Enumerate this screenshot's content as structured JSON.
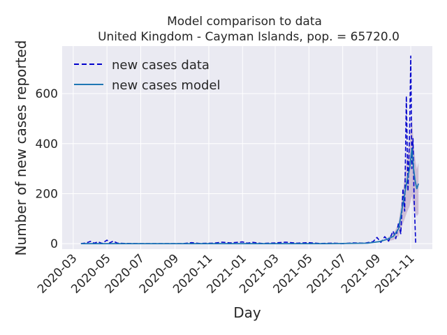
{
  "chart_data": {
    "type": "line",
    "title_line1": "Model comparison to data",
    "title_line2": "United Kingdom - Cayman Islands, pop. = 65720.0",
    "xlabel": "Day",
    "ylabel": "Number of new cases reported",
    "x_range": [
      "2020-02-10",
      "2021-12-10"
    ],
    "ylim": [
      -22,
      790
    ],
    "y_ticks": [
      0,
      200,
      400,
      600
    ],
    "y_tick_labels": [
      "0",
      "200",
      "400",
      "600"
    ],
    "x_ticks": [
      "2020-03-01",
      "2020-05-01",
      "2020-07-01",
      "2020-09-01",
      "2020-11-01",
      "2021-01-01",
      "2021-03-01",
      "2021-05-01",
      "2021-07-01",
      "2021-09-01",
      "2021-11-01"
    ],
    "x_tick_labels": [
      "2020-03",
      "2020-05",
      "2020-07",
      "2020-09",
      "2020-11",
      "2021-01",
      "2021-03",
      "2021-05",
      "2021-07",
      "2021-09",
      "2021-11"
    ],
    "grid": true,
    "legend_placement": "top-left",
    "colors": {
      "data": "#0000cc",
      "model": "#1f77b4",
      "band": "#b497bd",
      "background": "#eaeaf2",
      "grid": "#ffffff"
    },
    "series": [
      {
        "name": "new cases data",
        "style": "dashed",
        "points": [
          [
            "2020-03-15",
            0
          ],
          [
            "2020-03-25",
            3
          ],
          [
            "2020-04-01",
            9
          ],
          [
            "2020-04-08",
            2
          ],
          [
            "2020-04-15",
            7
          ],
          [
            "2020-04-22",
            1
          ],
          [
            "2020-05-01",
            14
          ],
          [
            "2020-05-06",
            3
          ],
          [
            "2020-05-12",
            10
          ],
          [
            "2020-05-20",
            2
          ],
          [
            "2020-06-01",
            1
          ],
          [
            "2020-07-01",
            0
          ],
          [
            "2020-08-01",
            0
          ],
          [
            "2020-09-15",
            0
          ],
          [
            "2020-10-01",
            4
          ],
          [
            "2020-10-15",
            1
          ],
          [
            "2020-11-10",
            2
          ],
          [
            "2020-11-25",
            6
          ],
          [
            "2020-12-10",
            3
          ],
          [
            "2021-01-01",
            7
          ],
          [
            "2021-01-10",
            2
          ],
          [
            "2021-01-20",
            5
          ],
          [
            "2021-02-05",
            1
          ],
          [
            "2021-03-01",
            3
          ],
          [
            "2021-03-20",
            6
          ],
          [
            "2021-04-10",
            2
          ],
          [
            "2021-05-01",
            4
          ],
          [
            "2021-05-20",
            1
          ],
          [
            "2021-06-15",
            2
          ],
          [
            "2021-07-01",
            0
          ],
          [
            "2021-07-20",
            3
          ],
          [
            "2021-08-10",
            2
          ],
          [
            "2021-08-25",
            8
          ],
          [
            "2021-09-01",
            25
          ],
          [
            "2021-09-08",
            5
          ],
          [
            "2021-09-15",
            28
          ],
          [
            "2021-09-22",
            10
          ],
          [
            "2021-09-30",
            50
          ],
          [
            "2021-10-05",
            20
          ],
          [
            "2021-10-10",
            85
          ],
          [
            "2021-10-14",
            40
          ],
          [
            "2021-10-18",
            220
          ],
          [
            "2021-10-21",
            130
          ],
          [
            "2021-10-24",
            590
          ],
          [
            "2021-10-27",
            210
          ],
          [
            "2021-10-30",
            450
          ],
          [
            "2021-11-01",
            750
          ],
          [
            "2021-11-03",
            300
          ],
          [
            "2021-11-05",
            420
          ],
          [
            "2021-11-07",
            180
          ],
          [
            "2021-11-10",
            0
          ]
        ]
      },
      {
        "name": "new cases model",
        "style": "solid",
        "points": [
          [
            "2020-03-15",
            0
          ],
          [
            "2020-06-01",
            0
          ],
          [
            "2020-09-01",
            0
          ],
          [
            "2020-12-01",
            0
          ],
          [
            "2021-03-01",
            0
          ],
          [
            "2021-06-01",
            0
          ],
          [
            "2021-08-15",
            2
          ],
          [
            "2021-09-05",
            8
          ],
          [
            "2021-09-20",
            18
          ],
          [
            "2021-10-01",
            30
          ],
          [
            "2021-10-10",
            60
          ],
          [
            "2021-10-18",
            160
          ],
          [
            "2021-10-25",
            250
          ],
          [
            "2021-10-30",
            300
          ],
          [
            "2021-11-03",
            380
          ],
          [
            "2021-11-06",
            300
          ],
          [
            "2021-11-09",
            250
          ],
          [
            "2021-11-12",
            220
          ],
          [
            "2021-11-15",
            240
          ]
        ]
      }
    ]
  }
}
